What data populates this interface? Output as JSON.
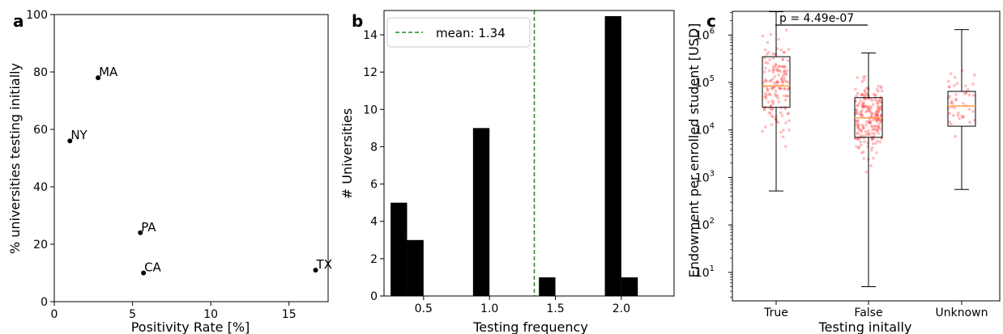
{
  "chart_data": [
    {
      "panel": "a",
      "type": "scatter",
      "xlabel": "Positivity Rate [%]",
      "ylabel": "% universities testing initially",
      "xlim": [
        0,
        17.5
      ],
      "ylim": [
        0,
        100
      ],
      "xticks": [
        0,
        5,
        10,
        15
      ],
      "yticks": [
        0,
        20,
        40,
        60,
        80,
        100
      ],
      "points": [
        {
          "label": "MA",
          "x": 2.8,
          "y": 78
        },
        {
          "label": "NY",
          "x": 1.0,
          "y": 56
        },
        {
          "label": "PA",
          "x": 5.5,
          "y": 24
        },
        {
          "label": "CA",
          "x": 5.7,
          "y": 10
        },
        {
          "label": "TX",
          "x": 16.7,
          "y": 11
        }
      ],
      "color": "#000000"
    },
    {
      "panel": "b",
      "type": "bar",
      "xlabel": "Testing frequency",
      "ylabel": "# Universities",
      "xlim": [
        0.2,
        2.4
      ],
      "ylim": [
        0,
        15.3
      ],
      "xticks": [
        "0.5",
        "1.0",
        "1.5",
        "2.0"
      ],
      "yticks": [
        0,
        2,
        4,
        6,
        8,
        10,
        12,
        14
      ],
      "bin_width": 0.125,
      "bins": [
        {
          "left": 0.25,
          "value": 5
        },
        {
          "left": 0.375,
          "value": 3
        },
        {
          "left": 0.875,
          "value": 9
        },
        {
          "left": 1.375,
          "value": 1
        },
        {
          "left": 1.875,
          "value": 15
        },
        {
          "left": 2.0,
          "value": 1
        }
      ],
      "mean_line": {
        "x": 1.34,
        "label": "mean: 1.34",
        "color": "#228b22"
      },
      "legend": "top-left",
      "color": "#000000"
    },
    {
      "panel": "c",
      "type": "box",
      "xlabel": "Testing initally",
      "ylabel": "Endowment per enrolled student [USD]",
      "yscale": "log",
      "ylim_log10": [
        0.4,
        6.5
      ],
      "ytick_exponents": [
        1,
        2,
        3,
        4,
        5,
        6
      ],
      "categories": [
        "True",
        "False",
        "Unknown"
      ],
      "boxes": [
        {
          "category": "True",
          "whisker_low": 520,
          "q1": 30000,
          "median": 85000,
          "q3": 350000,
          "whisker_high": 3100000
        },
        {
          "category": "False",
          "whisker_low": 5,
          "q1": 7000,
          "median": 18000,
          "q3": 48000,
          "whisker_high": 420000
        },
        {
          "category": "Unknown",
          "whisker_low": 560,
          "q1": 12000,
          "median": 32000,
          "q3": 65000,
          "whisker_high": 1300000
        }
      ],
      "annotation": "p = 4.49e-07",
      "point_color": "#ff4444",
      "median_color": "#ff9f40"
    }
  ]
}
